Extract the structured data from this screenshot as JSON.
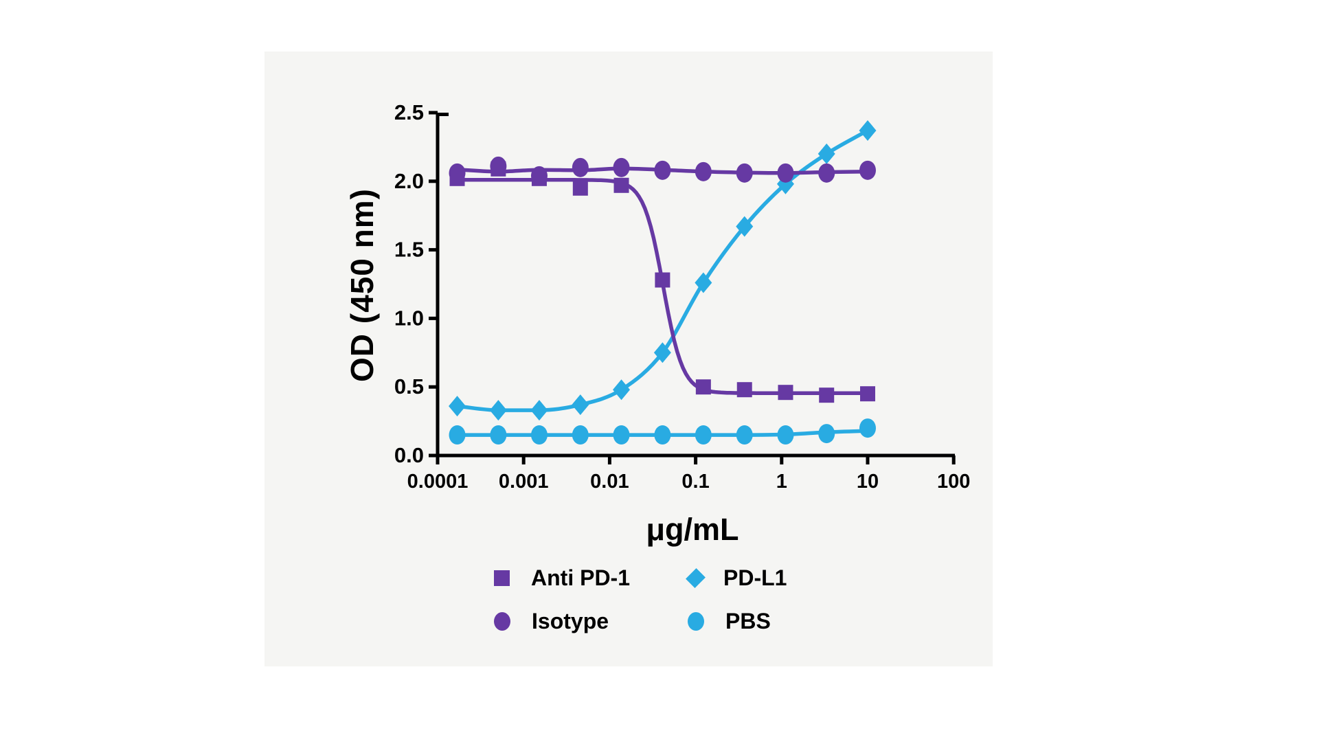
{
  "chart_data": {
    "type": "line",
    "title": "",
    "xlabel": "μg/mL",
    "ylabel": "OD (450 nm)",
    "x_scale": "log",
    "xlim": [
      0.0001,
      100
    ],
    "ylim": [
      0.0,
      2.5
    ],
    "grid": false,
    "legend_position": "bottom",
    "x_ticks": [
      "0.0001",
      "0.001",
      "0.01",
      "0.1",
      "1",
      "10",
      "100"
    ],
    "y_ticks": [
      "0.0",
      "0.5",
      "1.0",
      "1.5",
      "2.0",
      "2.5"
    ],
    "x": [
      0.000169,
      0.000508,
      0.00152,
      0.00457,
      0.0137,
      0.0412,
      0.123,
      0.37,
      1.11,
      3.33,
      10
    ],
    "series": [
      {
        "name": "Anti PD-1",
        "marker": "square",
        "color": "#6639A3",
        "curve": "logistic4",
        "fit": {
          "top": 2.01,
          "bottom": 0.455,
          "ec50": 0.042,
          "hill": 3.8,
          "direction": "descending"
        },
        "values": [
          2.02,
          2.09,
          2.02,
          1.95,
          1.97,
          1.28,
          0.5,
          0.48,
          0.46,
          0.44,
          0.45
        ]
      },
      {
        "name": "Isotype",
        "marker": "circle",
        "color": "#6639A3",
        "curve": "smooth",
        "values": [
          2.06,
          2.11,
          2.04,
          2.1,
          2.1,
          2.08,
          2.07,
          2.06,
          2.06,
          2.06,
          2.08
        ]
      },
      {
        "name": "PD-L1",
        "marker": "diamond",
        "color": "#29ABE2",
        "curve": "spline",
        "values": [
          0.36,
          0.33,
          0.33,
          0.37,
          0.48,
          0.75,
          1.26,
          1.67,
          1.98,
          2.2,
          2.37
        ]
      },
      {
        "name": "PBS",
        "marker": "circle",
        "color": "#29ABE2",
        "curve": "smooth",
        "values": [
          0.15,
          0.15,
          0.15,
          0.15,
          0.15,
          0.15,
          0.15,
          0.15,
          0.15,
          0.16,
          0.2
        ]
      }
    ],
    "axis_color": "#000000"
  },
  "legend": {
    "items": [
      {
        "series_index": 0
      },
      {
        "series_index": 2
      },
      {
        "series_index": 1
      },
      {
        "series_index": 3
      }
    ]
  }
}
